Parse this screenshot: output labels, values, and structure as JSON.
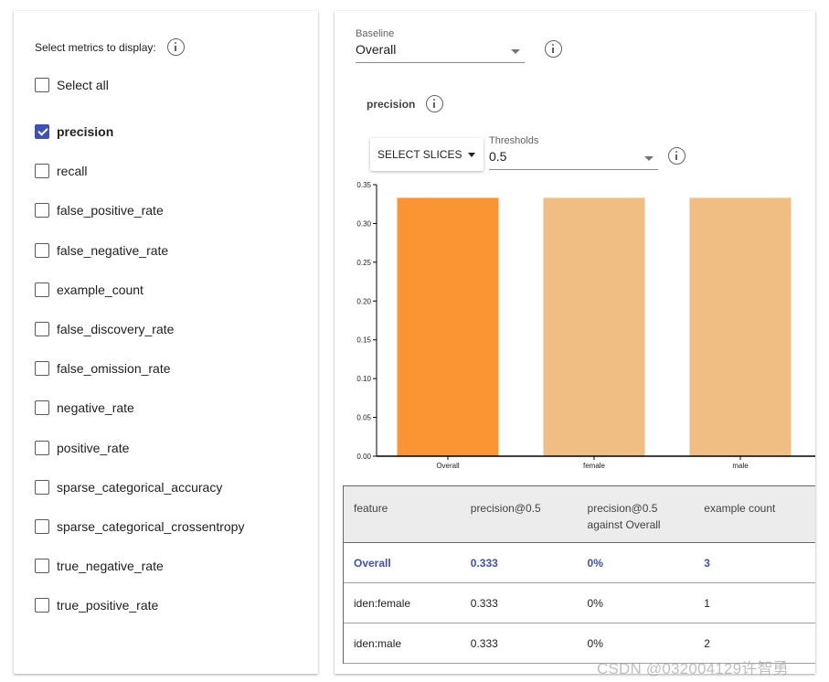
{
  "metrics_panel": {
    "header": "Select metrics to display:",
    "select_all_label": "Select all",
    "items": [
      {
        "label": "precision",
        "checked": true
      },
      {
        "label": "recall",
        "checked": false
      },
      {
        "label": "false_positive_rate",
        "checked": false
      },
      {
        "label": "false_negative_rate",
        "checked": false
      },
      {
        "label": "example_count",
        "checked": false
      },
      {
        "label": "false_discovery_rate",
        "checked": false
      },
      {
        "label": "false_omission_rate",
        "checked": false
      },
      {
        "label": "negative_rate",
        "checked": false
      },
      {
        "label": "positive_rate",
        "checked": false
      },
      {
        "label": "sparse_categorical_accuracy",
        "checked": false
      },
      {
        "label": "sparse_categorical_crossentropy",
        "checked": false
      },
      {
        "label": "true_negative_rate",
        "checked": false
      },
      {
        "label": "true_positive_rate",
        "checked": false
      }
    ]
  },
  "baseline": {
    "label": "Baseline",
    "value": "Overall"
  },
  "metric_title": "precision",
  "select_slices_label": "SELECT SLICES",
  "thresholds": {
    "label": "Thresholds",
    "value": "0.5"
  },
  "chart_data": {
    "type": "bar",
    "categories": [
      "Overall",
      "female",
      "male"
    ],
    "values": [
      0.333,
      0.333,
      0.333
    ],
    "colors": [
      "#fb9533",
      "#f0be83",
      "#f0be83"
    ],
    "yticks": [
      "0.00",
      "0.05",
      "0.10",
      "0.15",
      "0.20",
      "0.25",
      "0.30",
      "0.35"
    ],
    "ylim": [
      0,
      0.35
    ]
  },
  "table": {
    "headers": [
      "feature",
      "precision@0.5",
      "precision@0.5 against Overall",
      "example count"
    ],
    "rows": [
      [
        "Overall",
        "0.333",
        "0%",
        "3"
      ],
      [
        "iden:female",
        "0.333",
        "0%",
        "1"
      ],
      [
        "iden:male",
        "0.333",
        "0%",
        "2"
      ]
    ]
  },
  "watermark": "CSDN @032004129许智勇",
  "colors": {
    "accent": "#3f51b5",
    "bar_baseline": "#fb9533",
    "bar_slice": "#f0be83"
  }
}
